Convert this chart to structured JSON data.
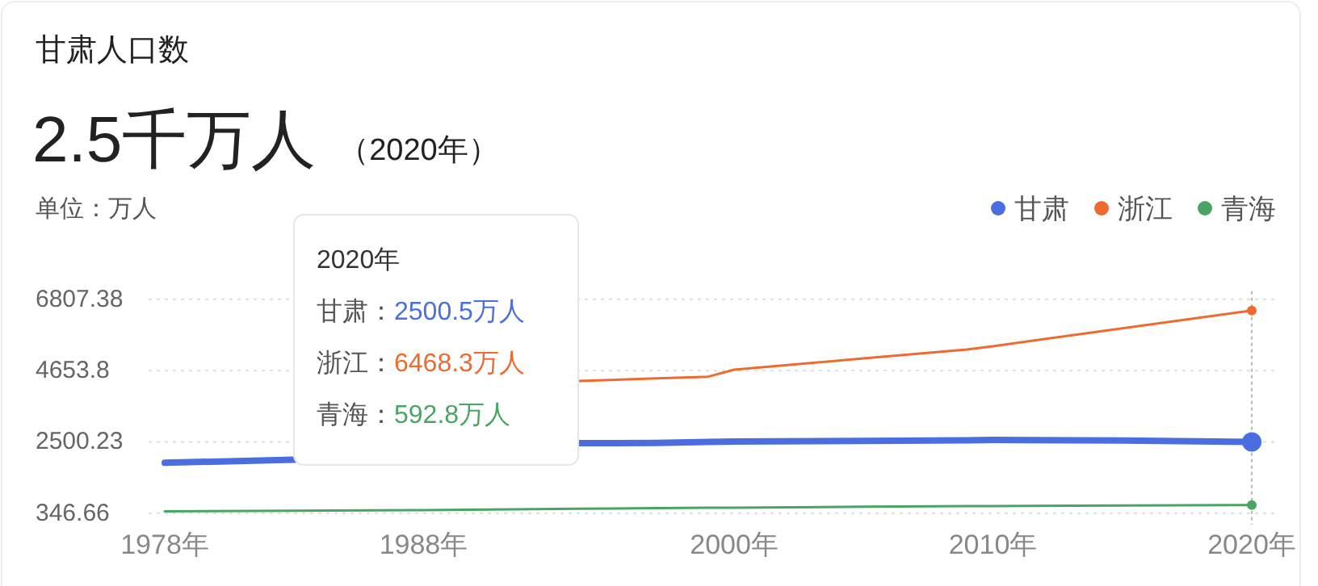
{
  "chart_data": {
    "type": "line",
    "title": "甘肃人口数",
    "subtitle": "2.5千万人",
    "ylabel": "单位：万人",
    "annotations": [
      "（2020年）",
      "2020年",
      "甘肃：2500.5万人",
      "浙江：6468.3万人",
      "青海：592.8万人"
    ],
    "x": [
      1978,
      1983,
      1988,
      1994,
      1997,
      1999,
      2000,
      2005,
      2009,
      2010,
      2015,
      2020
    ],
    "series": [
      {
        "name": "甘肃",
        "color": "#4a6ee0",
        "values": [
          1870,
          1960,
          null,
          2460,
          2470,
          2500,
          2510,
          2530,
          2550,
          2560,
          2540,
          2500.5
        ]
      },
      {
        "name": "浙江",
        "color": "#ee6a2f",
        "values": [
          null,
          null,
          null,
          4340,
          4420,
          4470,
          4680,
          5020,
          5290,
          5390,
          5930,
          6468.3
        ]
      },
      {
        "name": "青海",
        "color": "#4aa564",
        "values": [
          400,
          420,
          440,
          480,
          500,
          510,
          510,
          540,
          560,
          560,
          580,
          592.8
        ]
      }
    ],
    "xlim": [
      1978,
      2020
    ],
    "xticks": [
      {
        "value": 1978,
        "label": "1978年"
      },
      {
        "value": 1988,
        "label": "1988年"
      },
      {
        "value": 2000,
        "label": "2000年"
      },
      {
        "value": 2010,
        "label": "2010年"
      },
      {
        "value": 2020,
        "label": "2020年"
      }
    ],
    "ylim": [
      0,
      6807.38
    ],
    "yticks": [
      346.66,
      2500.23,
      4653.8,
      6807.38
    ],
    "grid": "y",
    "legend": "top right",
    "marker": "none",
    "ref_lines": [
      {
        "axis": "x",
        "value": 2020,
        "line_style": "dotted",
        "color": "#bbbbbb"
      }
    ]
  }
}
